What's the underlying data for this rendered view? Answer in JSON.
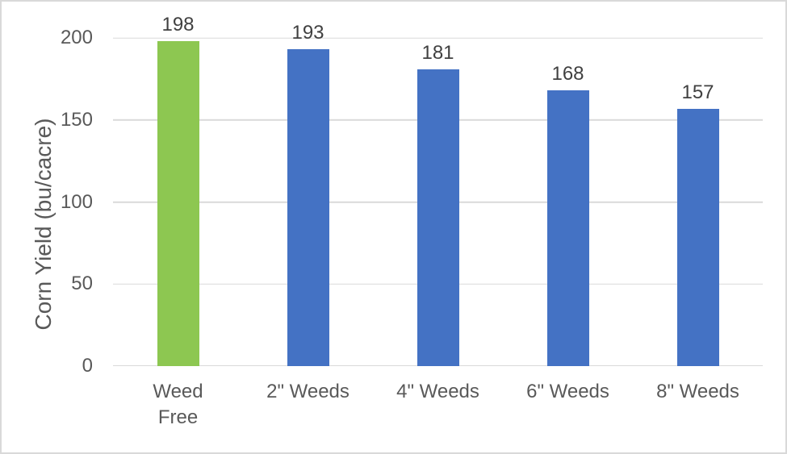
{
  "chart_data": {
    "type": "bar",
    "title": "",
    "xlabel": "",
    "ylabel": "Corn Yield (bu/cacre)",
    "categories": [
      "Weed\nFree",
      "2\" Weeds",
      "4\" Weeds",
      "6\" Weeds",
      "8\" Weeds"
    ],
    "values": [
      198,
      193,
      181,
      168,
      157
    ],
    "data_labels": [
      "198",
      "193",
      "181",
      "168",
      "157"
    ],
    "bar_colors": [
      "#8dc751",
      "#4472c4",
      "#4472c4",
      "#4472c4",
      "#4472c4"
    ],
    "ylim": [
      0,
      200
    ],
    "yticks": [
      0,
      50,
      100,
      150,
      200
    ],
    "grid": true,
    "legend": "none",
    "colors": {
      "gridline": "#d9d9d9",
      "axis_text": "#595959",
      "data_label_text": "#404040",
      "chart_border": "#d9d9d9",
      "background": "#ffffff"
    }
  }
}
